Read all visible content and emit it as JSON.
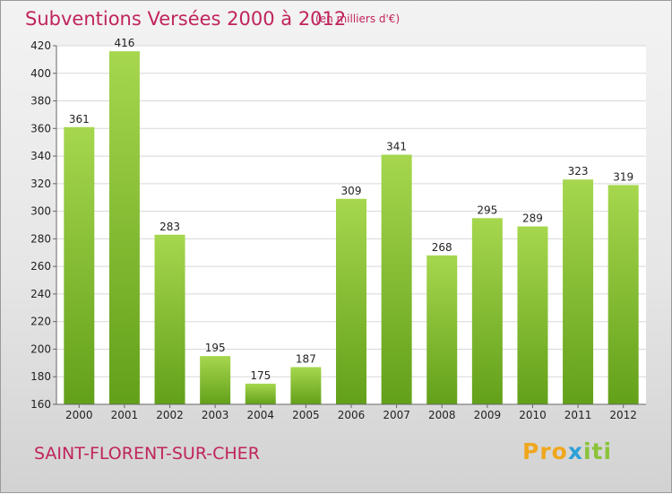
{
  "header": {
    "title": "Subventions Versées 2000 à 2012",
    "unit": "(en milliers d'€)"
  },
  "footer": {
    "city": "SAINT-FLORENT-SUR-CHER",
    "logo": {
      "part1": "Pro",
      "part2": "x",
      "part3": "iti"
    }
  },
  "colors": {
    "bar_light": "#a6d74e",
    "bar_dark": "#63a01a",
    "title": "#c0245c"
  },
  "chart_data": {
    "type": "bar",
    "categories": [
      "2000",
      "2001",
      "2002",
      "2003",
      "2004",
      "2005",
      "2006",
      "2007",
      "2008",
      "2009",
      "2010",
      "2011",
      "2012"
    ],
    "values": [
      361,
      416,
      283,
      195,
      175,
      187,
      309,
      341,
      268,
      295,
      289,
      323,
      319
    ],
    "title": "Subventions Versées 2000 à 2012",
    "xlabel": "",
    "ylabel": "",
    "ylim": [
      160,
      420
    ],
    "yticks": [
      160,
      180,
      200,
      220,
      240,
      260,
      280,
      300,
      320,
      340,
      360,
      380,
      400,
      420
    ],
    "grid": true,
    "data_labels": true
  }
}
